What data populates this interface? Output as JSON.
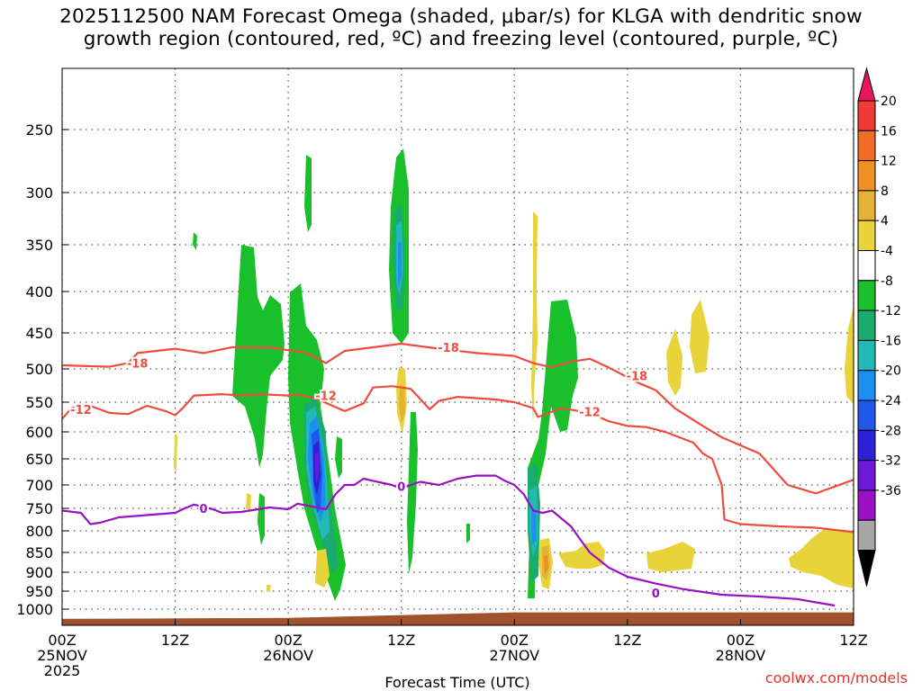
{
  "title": "2025112500 NAM Forecast Omega (shaded, μbar/s) for KLGA with dendritic snow\ngrowth region (contoured, red, ºC) and freezing level (contoured, purple, ºC)",
  "credit": "coolwx.com/models",
  "chart_data": {
    "type": "time-height cross section",
    "title": "2025112500 NAM Forecast Omega (shaded, μbar/s) for KLGA with dendritic snow growth region (contoured, red, ºC) and freezing level (contoured, purple, ºC)",
    "xlabel": "Forecast Time (UTC)",
    "ylabel": "",
    "x_range_hours": [
      0,
      84
    ],
    "xticks": [
      {
        "hour": 0,
        "label": "00Z",
        "date": "25NOV",
        "year": "2025"
      },
      {
        "hour": 12,
        "label": "12Z"
      },
      {
        "hour": 24,
        "label": "00Z",
        "date": "26NOV"
      },
      {
        "hour": 36,
        "label": "12Z"
      },
      {
        "hour": 48,
        "label": "00Z",
        "date": "27NOV"
      },
      {
        "hour": 60,
        "label": "12Z"
      },
      {
        "hour": 72,
        "label": "00Z",
        "date": "28NOV"
      },
      {
        "hour": 84,
        "label": "12Z"
      }
    ],
    "y_range_hPa": [
      1020,
      200
    ],
    "yticks": [
      250,
      300,
      350,
      400,
      450,
      500,
      550,
      600,
      650,
      700,
      750,
      800,
      850,
      900,
      950,
      1000
    ],
    "grid": "dotted",
    "colorbar": {
      "labels": [
        "20",
        "16",
        "12",
        "8",
        "4",
        "-4",
        "-8",
        "-12",
        "-16",
        "-20",
        "-24",
        "-28",
        "-32",
        "-36"
      ],
      "colors": [
        "#e8175d",
        "#ef3a35",
        "#f06b26",
        "#ef8f25",
        "#e3b236",
        "#e8d33a",
        "#ffffff",
        "#19c02c",
        "#1aac6f",
        "#21b8b5",
        "#1e8ff0",
        "#2058ec",
        "#2d20d6",
        "#6d1ad8",
        "#9a10c3",
        "#a6a6a6",
        "#000000"
      ]
    },
    "contours": [
      {
        "name": "dendritic -18",
        "label": "-18",
        "color": "#ef4b3f",
        "points": [
          [
            0,
            495
          ],
          [
            5,
            497
          ],
          [
            7,
            492
          ],
          [
            8,
            478
          ],
          [
            10,
            475
          ],
          [
            12,
            472
          ],
          [
            15,
            478
          ],
          [
            18,
            470
          ],
          [
            22,
            470
          ],
          [
            26,
            478
          ],
          [
            28,
            492
          ],
          [
            30,
            475
          ],
          [
            33,
            470
          ],
          [
            36,
            465
          ],
          [
            40,
            472
          ],
          [
            44,
            478
          ],
          [
            48,
            482
          ],
          [
            50,
            492
          ],
          [
            52,
            498
          ],
          [
            54,
            490
          ],
          [
            56,
            486
          ],
          [
            58,
            498
          ],
          [
            61,
            520
          ],
          [
            63,
            532
          ],
          [
            65,
            560
          ],
          [
            68,
            590
          ],
          [
            70,
            610
          ],
          [
            72,
            625
          ],
          [
            74,
            640
          ],
          [
            77,
            700
          ],
          [
            80,
            718
          ],
          [
            84,
            690
          ]
        ]
      },
      {
        "name": "dendritic -12",
        "label": "-12",
        "color": "#ef4b3f",
        "points": [
          [
            0,
            578
          ],
          [
            1,
            560
          ],
          [
            3,
            556
          ],
          [
            5,
            568
          ],
          [
            7,
            570
          ],
          [
            9,
            556
          ],
          [
            11,
            565
          ],
          [
            12,
            572
          ],
          [
            12.8,
            560
          ],
          [
            14,
            540
          ],
          [
            17,
            538
          ],
          [
            19,
            540
          ],
          [
            21,
            538
          ],
          [
            24,
            540
          ],
          [
            25,
            538
          ],
          [
            27,
            545
          ],
          [
            30,
            565
          ],
          [
            32,
            552
          ],
          [
            33,
            528
          ],
          [
            35,
            526
          ],
          [
            37,
            530
          ],
          [
            38,
            545
          ],
          [
            39,
            562
          ],
          [
            40,
            548
          ],
          [
            42,
            542
          ],
          [
            46,
            546
          ],
          [
            48,
            550
          ],
          [
            50,
            560
          ],
          [
            50.5,
            575
          ],
          [
            53,
            560
          ],
          [
            56,
            568
          ],
          [
            58,
            582
          ],
          [
            60,
            590
          ],
          [
            62,
            592
          ],
          [
            64,
            600
          ],
          [
            67,
            620
          ],
          [
            68,
            640
          ],
          [
            69,
            650
          ],
          [
            70,
            700
          ],
          [
            70.3,
            775
          ],
          [
            72,
            785
          ],
          [
            76,
            790
          ],
          [
            80,
            793
          ],
          [
            84,
            803
          ]
        ]
      },
      {
        "name": "freezing level 0",
        "label": "0",
        "color": "#9a10c3",
        "points": [
          [
            0,
            755
          ],
          [
            2,
            760
          ],
          [
            3,
            785
          ],
          [
            4,
            782
          ],
          [
            6,
            770
          ],
          [
            9,
            765
          ],
          [
            12,
            760
          ],
          [
            13,
            750
          ],
          [
            14,
            742
          ],
          [
            16,
            752
          ],
          [
            17,
            760
          ],
          [
            19,
            758
          ],
          [
            22,
            748
          ],
          [
            24,
            752
          ],
          [
            25,
            740
          ],
          [
            27,
            748
          ],
          [
            28,
            752
          ],
          [
            29,
            720
          ],
          [
            30,
            700
          ],
          [
            31,
            700
          ],
          [
            32,
            688
          ],
          [
            33,
            692
          ],
          [
            35,
            700
          ],
          [
            36,
            708
          ],
          [
            37,
            700
          ],
          [
            38,
            694
          ],
          [
            40,
            700
          ],
          [
            42,
            688
          ],
          [
            44,
            682
          ],
          [
            46,
            682
          ],
          [
            47,
            692
          ],
          [
            48,
            700
          ],
          [
            49,
            720
          ],
          [
            50,
            755
          ],
          [
            51,
            760
          ],
          [
            52,
            755
          ],
          [
            54,
            790
          ],
          [
            55,
            820
          ],
          [
            56,
            850
          ],
          [
            58,
            888
          ],
          [
            60,
            912
          ],
          [
            63,
            930
          ],
          [
            66,
            945
          ],
          [
            70,
            960
          ],
          [
            74,
            965
          ],
          [
            78,
            972
          ],
          [
            82,
            990
          ]
        ]
      }
    ],
    "omega_regions": [
      {
        "value_range": "-4 to -8",
        "center_hour": 20,
        "top_hPa": 380,
        "bottom_hPa": 660
      },
      {
        "value_range": "-4 to -20",
        "center_hour": 28,
        "top_hPa": 270,
        "bottom_hPa": 970
      },
      {
        "value_range": "-4 to -16",
        "center_hour": 36.2,
        "top_hPa": 265,
        "bottom_hPa": 460
      },
      {
        "value_range": "-4 to -8",
        "center_hour": 37.5,
        "top_hPa": 580,
        "bottom_hPa": 890
      },
      {
        "value_range": "-4 to -16",
        "center_hour": 52,
        "top_hPa": 410,
        "bottom_hPa": 960
      },
      {
        "value_range": "4 to 8",
        "center_hour": 50.5,
        "top_hPa": 330,
        "bottom_hPa": 560
      },
      {
        "value_range": "4 to 12",
        "center_hour": 51.2,
        "top_hPa": 845,
        "bottom_hPa": 930
      },
      {
        "value_range": "4 to 8",
        "center_hour": 62,
        "top_hPa": 810,
        "bottom_hPa": 900
      },
      {
        "value_range": "4 to 8",
        "center_hour": 80.5,
        "top_hPa": 790,
        "bottom_hPa": 950
      }
    ],
    "terrain": {
      "color": "#a0522d",
      "surface_hPa": [
        1012,
        1004
      ]
    }
  }
}
